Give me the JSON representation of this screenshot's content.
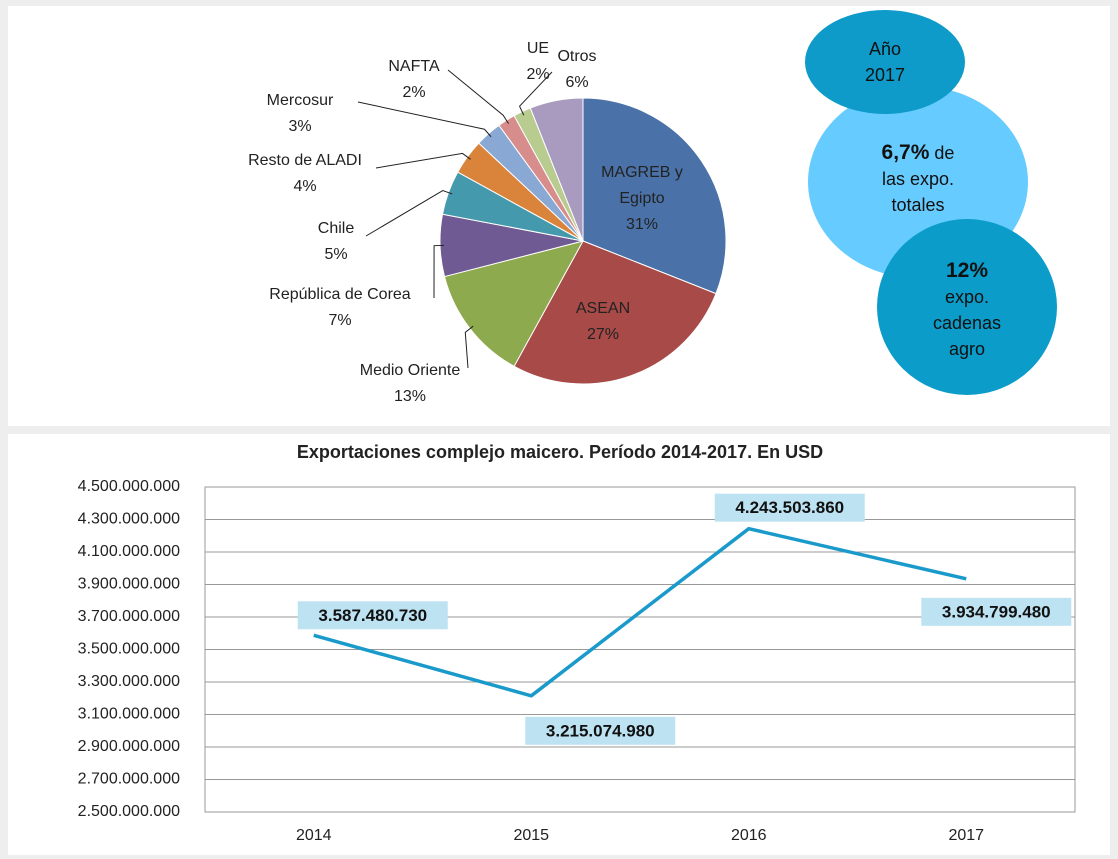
{
  "chart_data": [
    {
      "type": "pie",
      "categories": [
        "MAGREB y Egipto",
        "ASEAN",
        "Medio Oriente",
        "República de Corea",
        "Chile",
        "Resto de ALADI",
        "Mercosur",
        "NAFTA",
        "UE",
        "Otros"
      ],
      "values": [
        31,
        27,
        13,
        7,
        5,
        4,
        3,
        2,
        2,
        6
      ],
      "value_labels": [
        "31%",
        "27%",
        "13%",
        "7%",
        "5%",
        "4%",
        "3%",
        "2%",
        "2%",
        "6%"
      ],
      "colors": [
        "#4a72a8",
        "#a84a48",
        "#8daa4e",
        "#6f5a94",
        "#4599ad",
        "#d9833b",
        "#8aa8d4",
        "#d68d8c",
        "#b8cc90",
        "#a99ac0"
      ]
    },
    {
      "type": "line",
      "title": "Exportaciones complejo maicero. Período 2014-2017. En USD",
      "categories": [
        "2014",
        "2015",
        "2016",
        "2017"
      ],
      "values": [
        3587480730,
        3215074980,
        4243503860,
        3934799480
      ],
      "value_labels": [
        "3.587.480.730",
        "3.215.074.980",
        "4.243.503.860",
        "3.934.799.480"
      ],
      "color": "#1a9acb",
      "ylim": [
        2500000000,
        4500000000
      ],
      "yticks": [
        {
          "value": 2500000000,
          "label": "2.500.000.000"
        },
        {
          "value": 2700000000,
          "label": "2.700.000.000"
        },
        {
          "value": 2900000000,
          "label": "2.900.000.000"
        },
        {
          "value": 3100000000,
          "label": "3.100.000.000"
        },
        {
          "value": 3300000000,
          "label": "3.300.000.000"
        },
        {
          "value": 3500000000,
          "label": "3.500.000.000"
        },
        {
          "value": 3700000000,
          "label": "3.700.000.000"
        },
        {
          "value": 3900000000,
          "label": "3.900.000.000"
        },
        {
          "value": 4100000000,
          "label": "4.100.000.000"
        },
        {
          "value": 4300000000,
          "label": "4.300.000.000"
        },
        {
          "value": 4500000000,
          "label": "4.500.000.000"
        }
      ],
      "grid": true
    }
  ],
  "infographic": {
    "year_label": "Año",
    "year": "2017",
    "share_total": "6,7%",
    "share_total_text": [
      "de",
      "las expo.",
      "totales"
    ],
    "share_agro": "12%",
    "share_agro_text": [
      "expo.",
      "cadenas",
      "agro"
    ]
  }
}
